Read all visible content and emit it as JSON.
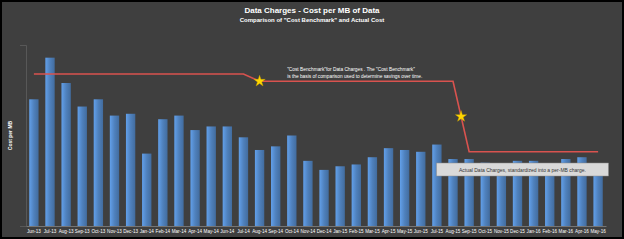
{
  "chart_data": {
    "type": "bar",
    "title": "Data Charges - Cost per MB of Data",
    "subtitle": "Comparison of \"Cost Benchmark\" and Actual Cost",
    "y_label": "Cost per MB",
    "categories": [
      "Jun-13",
      "Jul-13",
      "Aug-13",
      "Sep-13",
      "Oct-13",
      "Nov-13",
      "Dec-13",
      "Jan-14",
      "Feb-14",
      "Mar-14",
      "Apr-14",
      "May-14",
      "Jun-14",
      "Jul-14",
      "Aug-14",
      "Sep-14",
      "Oct-14",
      "Nov-14",
      "Dec-14",
      "Jan-15",
      "Feb-15",
      "Mar-15",
      "Apr-15",
      "May-15",
      "Jun-15",
      "Jul-15",
      "Aug-15",
      "Sep-15",
      "Oct-15",
      "Nov-15",
      "Dec-15",
      "Jan-16",
      "Feb-16",
      "Mar-16",
      "Apr-16",
      "May-16"
    ],
    "series": [
      {
        "type": "bar",
        "color": "#4f81bd",
        "values": [
          70,
          93,
          79,
          66,
          70,
          61,
          62,
          40,
          59,
          61,
          53,
          55,
          55,
          49,
          42,
          44,
          50,
          36,
          31,
          33,
          34,
          38,
          43,
          42,
          41,
          45,
          37,
          37,
          35,
          34,
          36,
          36,
          34,
          37,
          38,
          33
        ]
      },
      {
        "type": "line",
        "color": "#d9534f",
        "marker": "star",
        "values": [
          84,
          84,
          84,
          84,
          84,
          84,
          84,
          84,
          84,
          84,
          84,
          84,
          84,
          84,
          80,
          80,
          80,
          80,
          80,
          80,
          80,
          80,
          80,
          80,
          80,
          80,
          80,
          41,
          41,
          41,
          41,
          41,
          41,
          41,
          41,
          41
        ]
      }
    ],
    "annotations": [
      {
        "lines": [
          "\"Cost Benchmark\"for Data Charges .    The \"Cost  Benchmark\"",
          "is the basis of comparison used  to determine  savings over time."
        ]
      },
      {
        "lines": [
          "Actual Data Charges, standardized into a per-MB charge."
        ]
      }
    ],
    "ylim": [
      0,
      100
    ],
    "yticks": [],
    "tick_labels": "x",
    "grid": false
  }
}
